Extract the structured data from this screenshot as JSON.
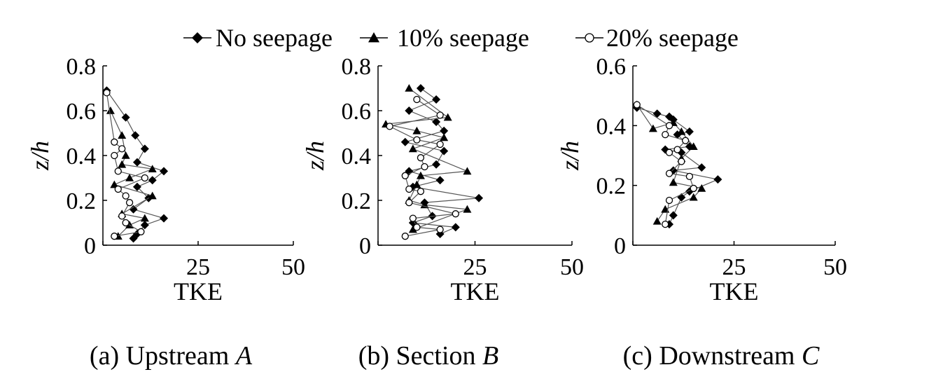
{
  "legend": {
    "items": [
      {
        "label": "No seepage",
        "marker": "diamond"
      },
      {
        "label": "10% seepage",
        "marker": "triangle"
      },
      {
        "label": "20% seepage",
        "marker": "circle"
      }
    ]
  },
  "colors": {
    "marker_fill": "#000000",
    "line": "#555555",
    "open_marker_fill": "#ffffff"
  },
  "chart_data": [
    {
      "type": "scatter",
      "caption_prefix": "(a) Upstream ",
      "caption_letter": "A",
      "xlabel": "TKE",
      "ylabel": "z/h",
      "xlim": [
        0,
        50
      ],
      "ylim": [
        0,
        0.8
      ],
      "xticks": [
        25,
        50
      ],
      "yticks": [
        0,
        0.2,
        0.4,
        0.6,
        0.8
      ],
      "series": [
        {
          "name": "No seepage",
          "marker": "diamond",
          "points": [
            [
              1,
              0.69
            ],
            [
              6,
              0.57
            ],
            [
              8.5,
              0.49
            ],
            [
              11,
              0.43
            ],
            [
              9,
              0.37
            ],
            [
              16,
              0.33
            ],
            [
              13,
              0.29
            ],
            [
              9,
              0.26
            ],
            [
              12,
              0.21
            ],
            [
              8,
              0.16
            ],
            [
              16,
              0.12
            ],
            [
              11,
              0.09
            ],
            [
              9,
              0.05
            ],
            [
              8,
              0.03
            ]
          ]
        },
        {
          "name": "10% seepage",
          "marker": "triangle",
          "points": [
            [
              2,
              0.6
            ],
            [
              5,
              0.49
            ],
            [
              6,
              0.4
            ],
            [
              5,
              0.36
            ],
            [
              13,
              0.34
            ],
            [
              7,
              0.3
            ],
            [
              3,
              0.27
            ],
            [
              13,
              0.22
            ],
            [
              5,
              0.14
            ],
            [
              11,
              0.12
            ],
            [
              7,
              0.09
            ],
            [
              4,
              0.04
            ]
          ]
        },
        {
          "name": "20% seepage",
          "marker": "circle",
          "points": [
            [
              1,
              0.68
            ],
            [
              3,
              0.46
            ],
            [
              5,
              0.43
            ],
            [
              3,
              0.4
            ],
            [
              4,
              0.33
            ],
            [
              11,
              0.3
            ],
            [
              4,
              0.25
            ],
            [
              6,
              0.22
            ],
            [
              7,
              0.19
            ],
            [
              5,
              0.13
            ],
            [
              6,
              0.1
            ],
            [
              10,
              0.06
            ],
            [
              3,
              0.04
            ]
          ]
        }
      ]
    },
    {
      "type": "scatter",
      "caption_prefix": "(b) Section ",
      "caption_letter": "B",
      "xlabel": "TKE",
      "ylabel": "z/h",
      "xlim": [
        0,
        50
      ],
      "ylim": [
        0,
        0.8
      ],
      "xticks": [
        25,
        50
      ],
      "yticks": [
        0,
        0.2,
        0.4,
        0.6,
        0.8
      ],
      "series": [
        {
          "name": "No seepage",
          "marker": "diamond",
          "points": [
            [
              11,
              0.7
            ],
            [
              15,
              0.65
            ],
            [
              8,
              0.6
            ],
            [
              15,
              0.55
            ],
            [
              17,
              0.51
            ],
            [
              7,
              0.46
            ],
            [
              17,
              0.42
            ],
            [
              15,
              0.36
            ],
            [
              8,
              0.33
            ],
            [
              16,
              0.29
            ],
            [
              9,
              0.26
            ],
            [
              26,
              0.21
            ],
            [
              12,
              0.19
            ],
            [
              14,
              0.13
            ],
            [
              9,
              0.1
            ],
            [
              20,
              0.08
            ],
            [
              16,
              0.05
            ]
          ]
        },
        {
          "name": "10% seepage",
          "marker": "triangle",
          "points": [
            [
              8,
              0.7
            ],
            [
              18,
              0.57
            ],
            [
              2,
              0.54
            ],
            [
              10,
              0.51
            ],
            [
              17,
              0.48
            ],
            [
              9,
              0.43
            ],
            [
              23,
              0.33
            ],
            [
              11,
              0.31
            ],
            [
              10,
              0.27
            ],
            [
              8,
              0.2
            ],
            [
              12,
              0.18
            ],
            [
              23,
              0.16
            ],
            [
              9,
              0.07
            ]
          ]
        },
        {
          "name": "20% seepage",
          "marker": "circle",
          "points": [
            [
              10,
              0.65
            ],
            [
              16,
              0.58
            ],
            [
              3,
              0.53
            ],
            [
              10,
              0.47
            ],
            [
              16,
              0.45
            ],
            [
              11,
              0.39
            ],
            [
              12,
              0.35
            ],
            [
              7,
              0.31
            ],
            [
              8,
              0.25
            ],
            [
              11,
              0.24
            ],
            [
              8,
              0.19
            ],
            [
              20,
              0.14
            ],
            [
              9,
              0.12
            ],
            [
              10,
              0.08
            ],
            [
              16,
              0.07
            ],
            [
              7,
              0.04
            ]
          ]
        }
      ]
    },
    {
      "type": "scatter",
      "caption_prefix": "(c) Downstream ",
      "caption_letter": "C",
      "xlabel": "TKE",
      "ylabel": "z/h",
      "xlim": [
        0,
        50
      ],
      "ylim": [
        0,
        0.6
      ],
      "xticks": [
        25,
        50
      ],
      "yticks": [
        0,
        0.2,
        0.4,
        0.6
      ],
      "series": [
        {
          "name": "No seepage",
          "marker": "diamond",
          "points": [
            [
              1,
              0.46
            ],
            [
              6,
              0.44
            ],
            [
              9,
              0.43
            ],
            [
              10,
              0.42
            ],
            [
              14,
              0.38
            ],
            [
              11,
              0.37
            ],
            [
              14,
              0.33
            ],
            [
              8,
              0.32
            ],
            [
              12,
              0.31
            ],
            [
              17,
              0.26
            ],
            [
              10,
              0.25
            ],
            [
              21,
              0.22
            ],
            [
              14,
              0.18
            ],
            [
              12,
              0.16
            ],
            [
              10,
              0.1
            ],
            [
              9,
              0.07
            ]
          ]
        },
        {
          "name": "10% seepage",
          "marker": "triangle",
          "points": [
            [
              1,
              0.47
            ],
            [
              5,
              0.39
            ],
            [
              10,
              0.41
            ],
            [
              12,
              0.38
            ],
            [
              15,
              0.33
            ],
            [
              12,
              0.29
            ],
            [
              10,
              0.21
            ],
            [
              17,
              0.19
            ],
            [
              15,
              0.16
            ],
            [
              8,
              0.12
            ],
            [
              6,
              0.08
            ]
          ]
        },
        {
          "name": "20% seepage",
          "marker": "circle",
          "points": [
            [
              1,
              0.47
            ],
            [
              9,
              0.4
            ],
            [
              8,
              0.37
            ],
            [
              13,
              0.35
            ],
            [
              11,
              0.32
            ],
            [
              9,
              0.31
            ],
            [
              12,
              0.28
            ],
            [
              9,
              0.24
            ],
            [
              14,
              0.23
            ],
            [
              15,
              0.19
            ],
            [
              9,
              0.15
            ],
            [
              8,
              0.07
            ]
          ]
        }
      ]
    }
  ]
}
